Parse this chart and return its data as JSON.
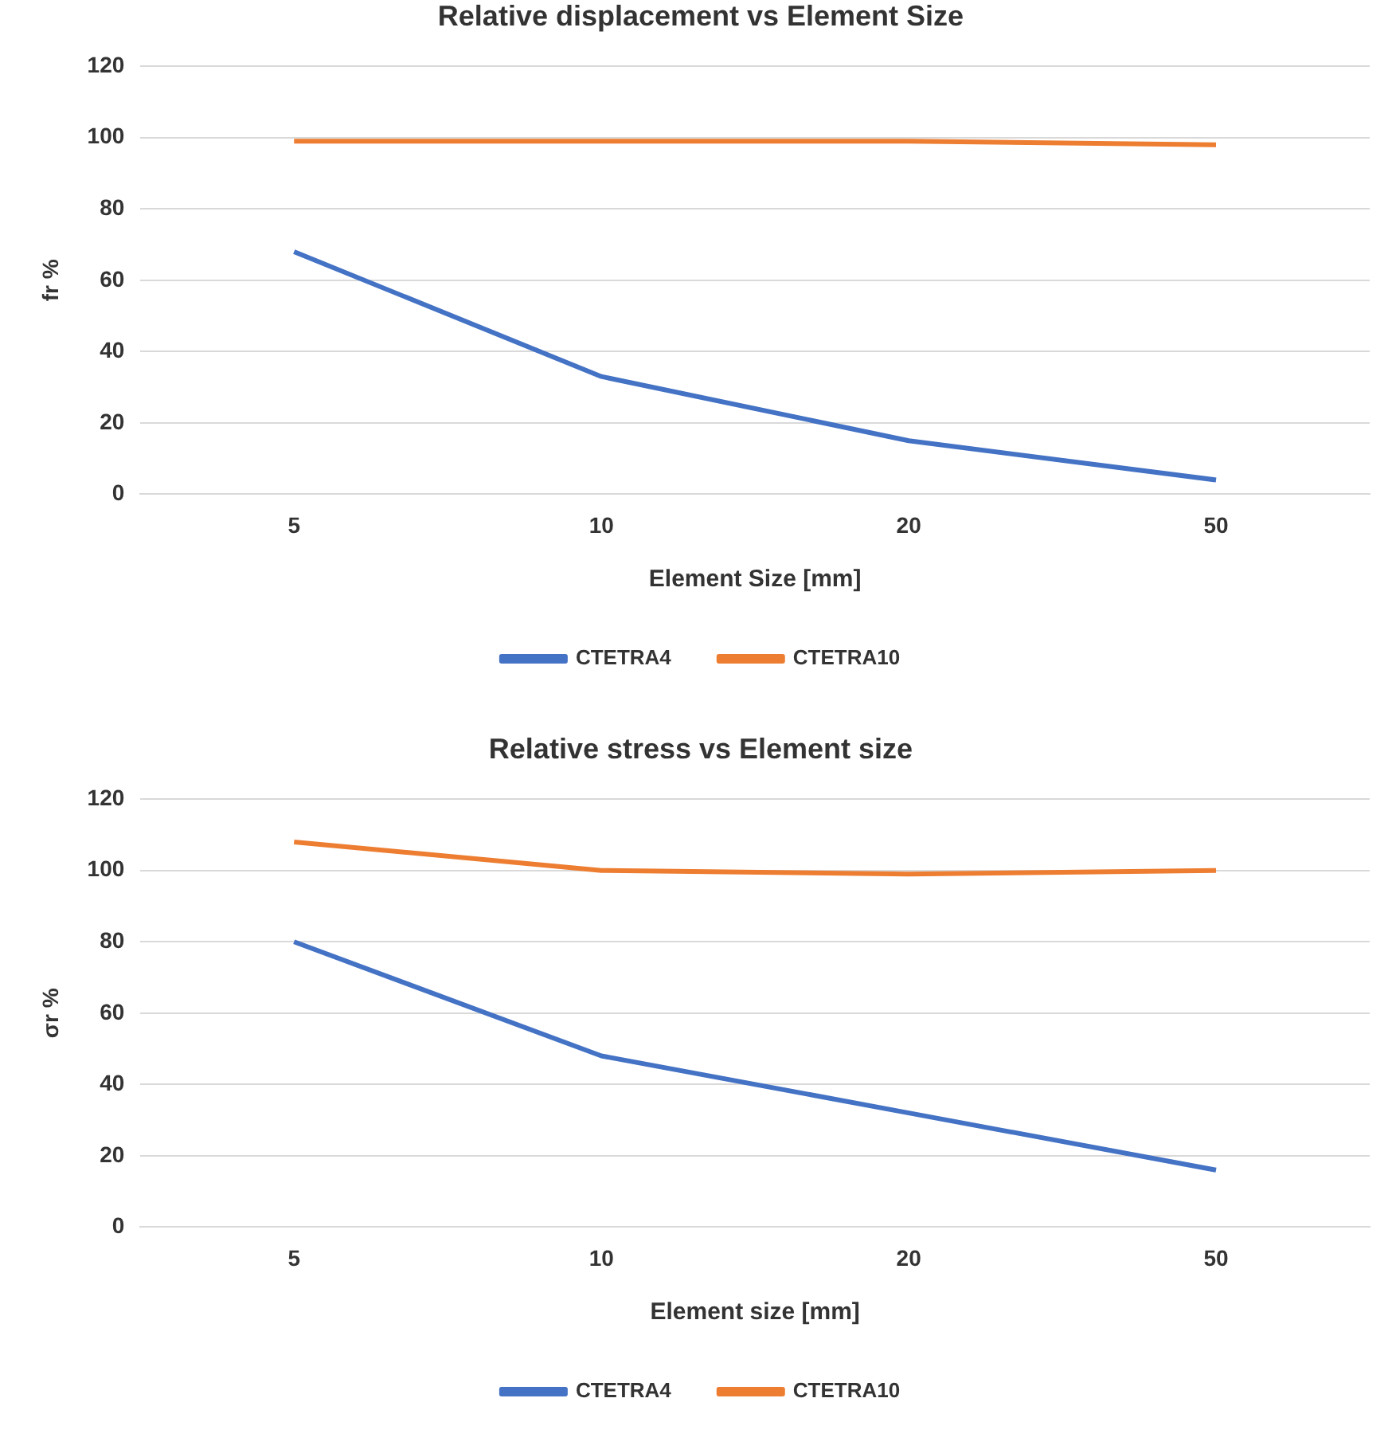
{
  "chart_data": [
    {
      "type": "line",
      "title": "Relative displacement vs Element Size",
      "xlabel": "Element Size [mm]",
      "ylabel": "fr %",
      "categories": [
        "5",
        "10",
        "20",
        "50"
      ],
      "ylim": [
        0,
        120
      ],
      "yticks": [
        0,
        20,
        40,
        60,
        80,
        100,
        120
      ],
      "grid": "y",
      "legend": "bottom",
      "marker": "none",
      "series": [
        {
          "name": "CTETRA4",
          "color": "#4472c4",
          "values": [
            68,
            33,
            15,
            4
          ]
        },
        {
          "name": "CTETRA10",
          "color": "#ed7d31",
          "values": [
            99,
            99,
            99,
            98
          ]
        }
      ]
    },
    {
      "type": "line",
      "title": "Relative stress vs Element size",
      "xlabel": "Element size [mm]",
      "ylabel": "σr %",
      "categories": [
        "5",
        "10",
        "20",
        "50"
      ],
      "ylim": [
        0,
        120
      ],
      "yticks": [
        0,
        20,
        40,
        60,
        80,
        100,
        120
      ],
      "grid": "y",
      "legend": "bottom",
      "marker": "none",
      "series": [
        {
          "name": "CTETRA4",
          "color": "#4472c4",
          "values": [
            80,
            48,
            32,
            16
          ]
        },
        {
          "name": "CTETRA10",
          "color": "#ed7d31",
          "values": [
            108,
            100,
            99,
            100
          ]
        }
      ]
    }
  ]
}
